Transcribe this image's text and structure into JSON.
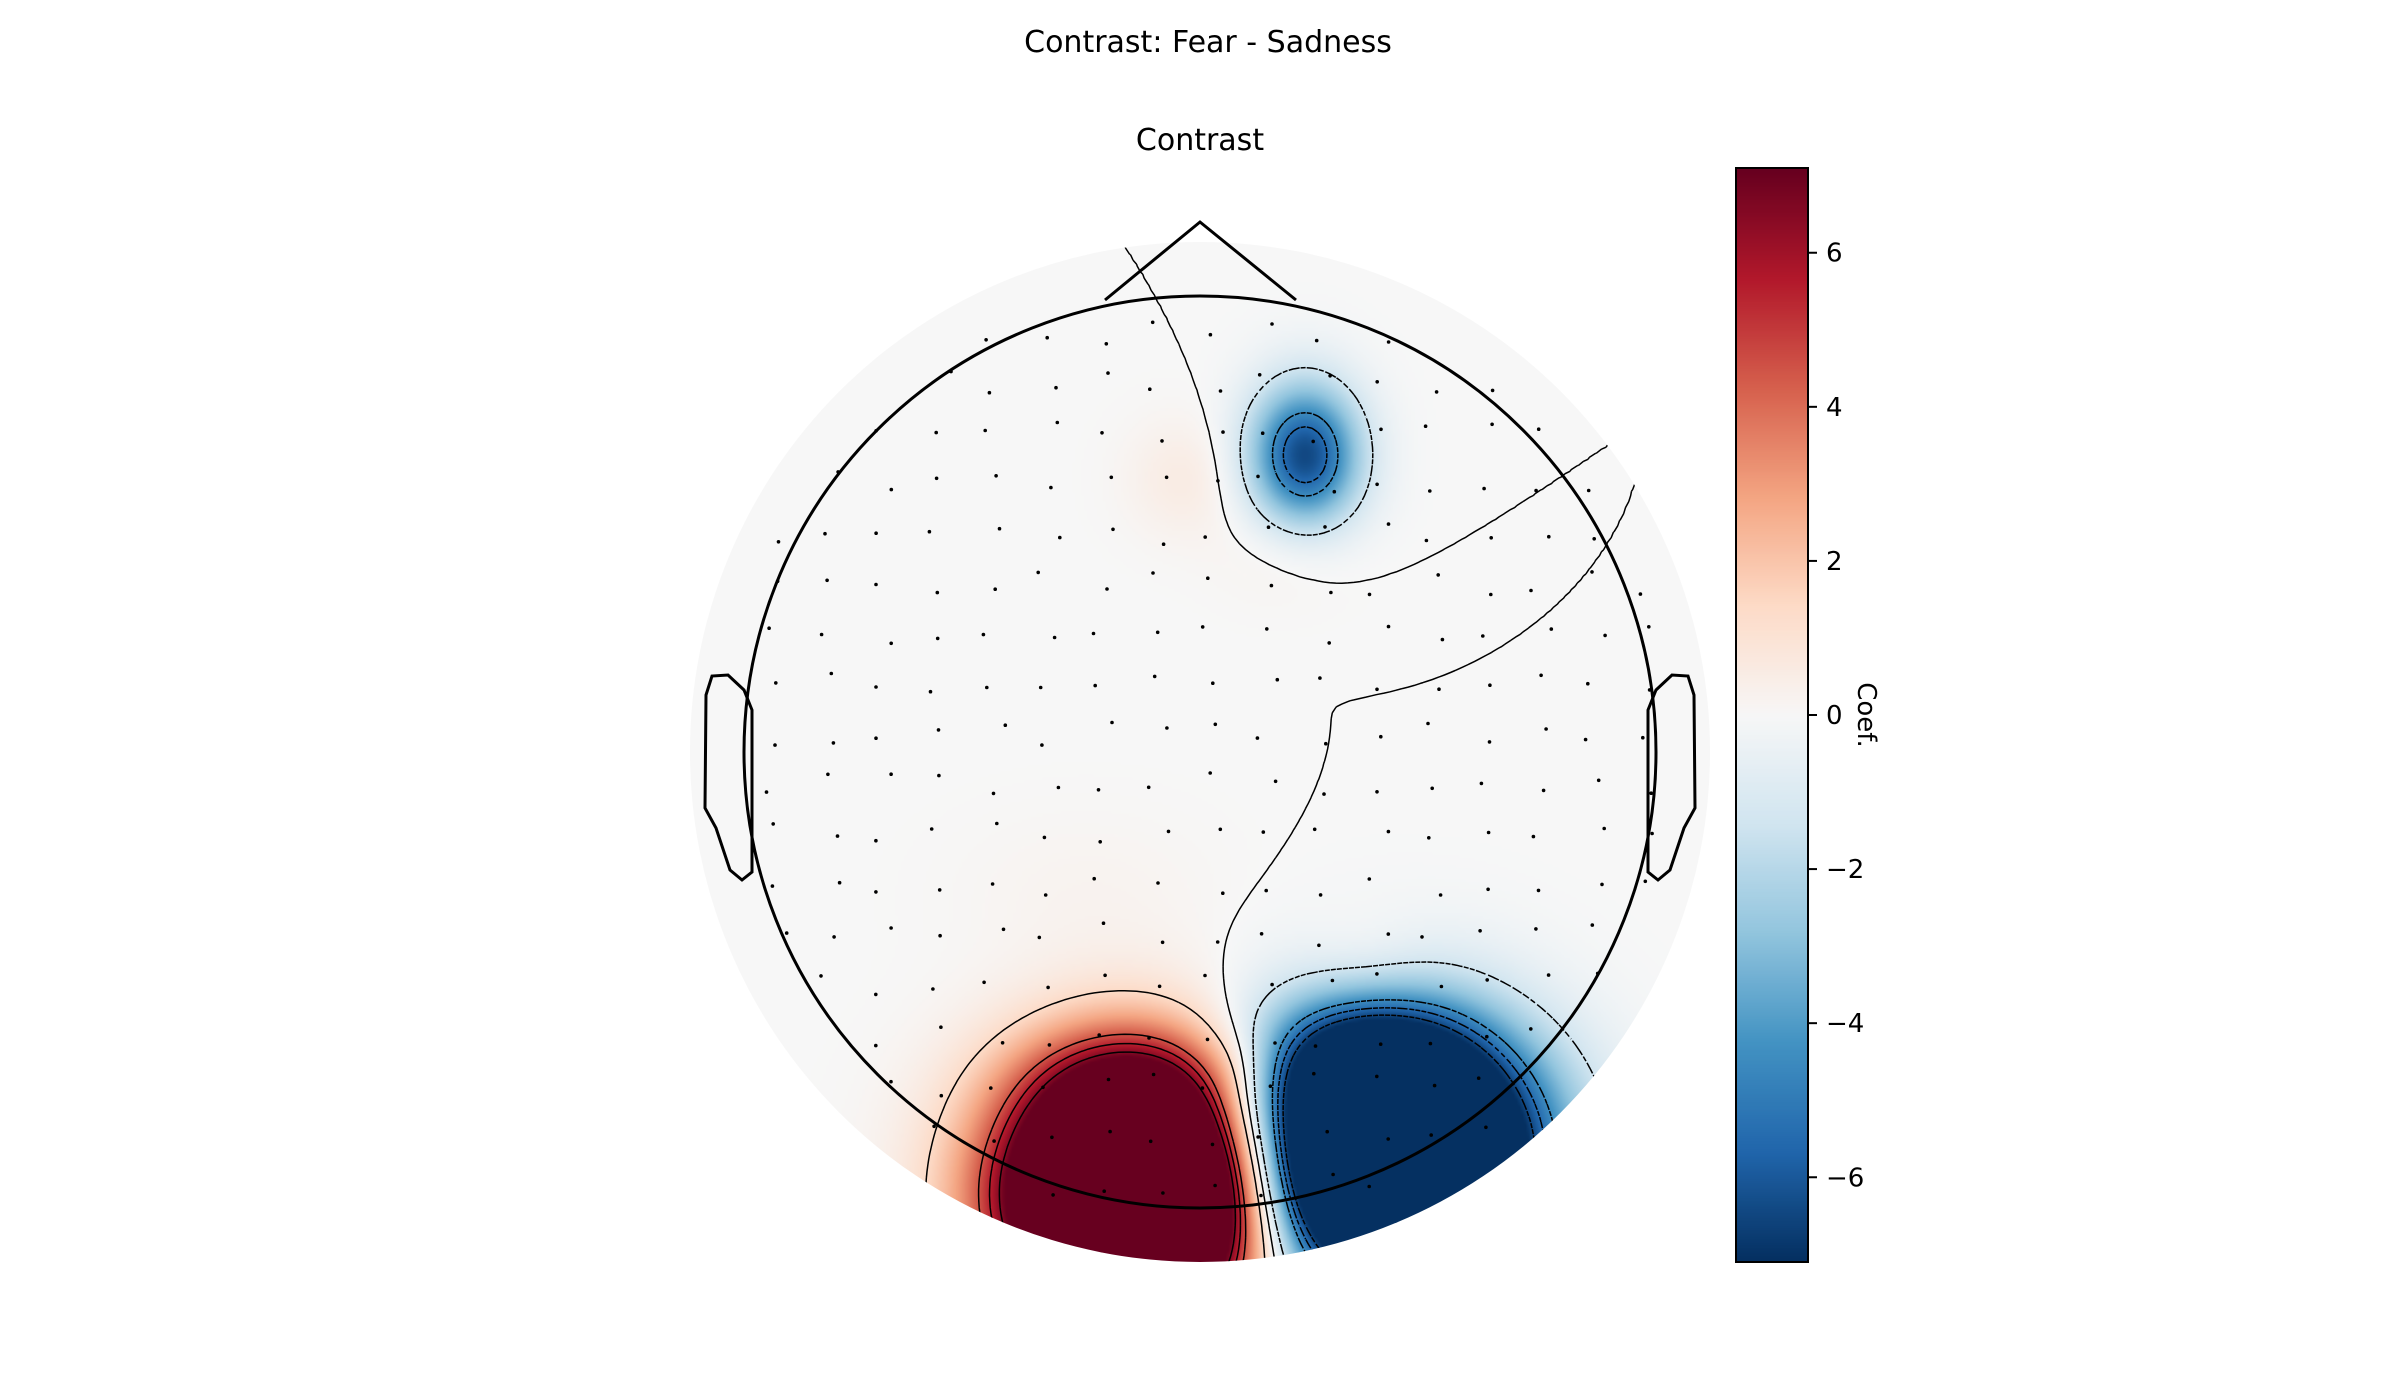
{
  "figure": {
    "suptitle": "Contrast: Fear - Sadness"
  },
  "chart_data": {
    "type": "heatmap",
    "subtype": "topomap",
    "title": "Contrast",
    "colormap": "RdBu_r",
    "vlim": [
      -7.1,
      7.1
    ],
    "colorbar": {
      "label": "Coef.",
      "ticks": [
        6,
        4,
        2,
        0,
        -2,
        -4,
        -6
      ],
      "tick_labels": [
        "6",
        "4",
        "2",
        "0",
        "−2",
        "−4",
        "−6"
      ]
    },
    "extrema": [
      {
        "name": "frontal-negative",
        "x": 0.23,
        "y": 0.65,
        "value": -5.2
      },
      {
        "name": "occipital-left-positive",
        "x": -0.14,
        "y": -0.97,
        "value": 7.1
      },
      {
        "name": "occipital-right-negative",
        "x": 0.42,
        "y": -0.87,
        "value": -7.1
      },
      {
        "name": "frontal-weak-positive-left",
        "x": -0.03,
        "y": 0.6,
        "value": 0.6
      },
      {
        "name": "central-weak-positive",
        "x": 0.2,
        "y": 0.45,
        "value": 0.5
      },
      {
        "name": "parietal-weak-positive",
        "x": 0.35,
        "y": -0.45,
        "value": 0.6
      }
    ],
    "contour_levels": [
      -6.5,
      -5.5,
      -4.5,
      -1.4,
      0,
      1.4,
      4.5,
      5.5,
      6.5
    ]
  },
  "colors": {
    "head_outline": "#000000",
    "background": "#ffffff"
  }
}
